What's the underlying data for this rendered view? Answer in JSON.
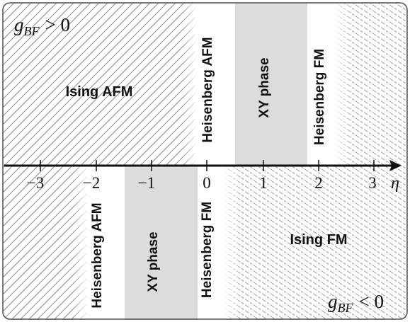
{
  "upper_half": {
    "condition_main": "g",
    "condition_sub": "BF",
    "condition_rel": "> 0",
    "regions": {
      "ising_afm": "Ising AFM",
      "heisenberg_afm": "Heisenberg AFM",
      "xy_phase": "XY phase",
      "heisenberg_fm": "Heisenberg FM"
    }
  },
  "lower_half": {
    "condition_main": "g",
    "condition_sub": "BF",
    "condition_rel": "< 0",
    "regions": {
      "heisenberg_afm": "Heisenberg AFM",
      "xy_phase": "XY phase",
      "heisenberg_fm": "Heisenberg FM",
      "ising_fm": "Ising FM"
    }
  },
  "axis": {
    "label": "η",
    "ticks": [
      "−3",
      "−2",
      "−1",
      "0",
      "1",
      "2",
      "3"
    ]
  },
  "colors": {
    "frame": "#4d4d4d",
    "gray_band": "#dcdcdc",
    "hatch_upper": "#8c8c8c",
    "hatch_lower": "#9a9a9a",
    "axis": "#111111"
  }
}
